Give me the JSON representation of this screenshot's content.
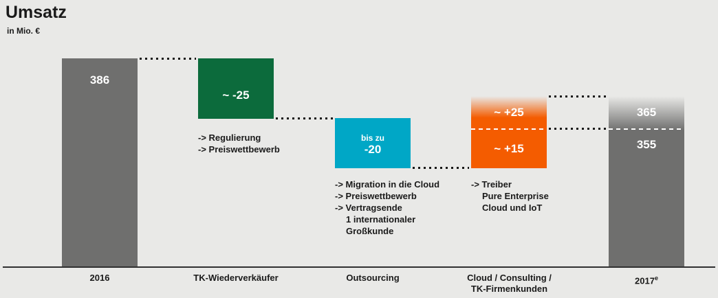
{
  "header": {
    "title": "Umsatz",
    "subtitle": "in Mio. €"
  },
  "bars": [
    {
      "value": "386",
      "category": "2016"
    },
    {
      "value": "~ -25",
      "category": "TK-Wiederverkäufer",
      "annotations": [
        "-> Regulierung",
        "-> Preiswettbewerb"
      ]
    },
    {
      "value_prefix": "bis zu",
      "value": "-20",
      "category": "Outsourcing",
      "annotations": [
        "-> Migration in die Cloud",
        "-> Preiswettbewerb",
        "-> Vertragsende",
        "1 internationaler",
        "Großkunde"
      ]
    },
    {
      "value_top": "~ +25",
      "value_bottom": "~ +15",
      "category_line1": "Cloud / Consulting /",
      "category_line2": "TK-Firmenkunden",
      "annotations": [
        "-> Treiber",
        "Pure Enterprise",
        "Cloud und IoT"
      ]
    },
    {
      "value_top": "365",
      "value_bottom": "355",
      "category": "2017",
      "category_sup": "e"
    }
  ],
  "chart_data": {
    "type": "waterfall",
    "title": "Umsatz",
    "unit": "Mio. €",
    "categories": [
      "2016",
      "TK-Wiederverkäufer",
      "Outsourcing",
      "Cloud / Consulting / TK-Firmenkunden",
      "2017e"
    ],
    "steps": [
      {
        "category": "2016",
        "kind": "total",
        "value": 386
      },
      {
        "category": "TK-Wiederverkäufer",
        "kind": "decrease",
        "value": -25,
        "label": "~ -25",
        "drivers": [
          "Regulierung",
          "Preiswettbewerb"
        ]
      },
      {
        "category": "Outsourcing",
        "kind": "decrease",
        "value": -20,
        "label": "bis zu -20",
        "drivers": [
          "Migration in die Cloud",
          "Preiswettbewerb",
          "Vertragsende 1 internationaler Großkunde"
        ]
      },
      {
        "category": "Cloud / Consulting / TK-Firmenkunden",
        "kind": "increase",
        "value_low": 15,
        "value_high": 25,
        "label_low": "~ +15",
        "label_high": "~ +25",
        "drivers": [
          "Treiber Pure Enterprise Cloud und IoT"
        ]
      },
      {
        "category": "2017e",
        "kind": "total",
        "value_low": 355,
        "value_high": 365
      }
    ],
    "colors": {
      "total_bar": "#6f6f6e",
      "decrease_tk": "#0c6b3c",
      "decrease_outsourcing": "#00a7c6",
      "increase_cloud": "#f45c00",
      "background": "#e9e9e7",
      "connector_dots": "#161616",
      "separator_dash": "#ffffff"
    },
    "grid": false,
    "legend": "none"
  }
}
